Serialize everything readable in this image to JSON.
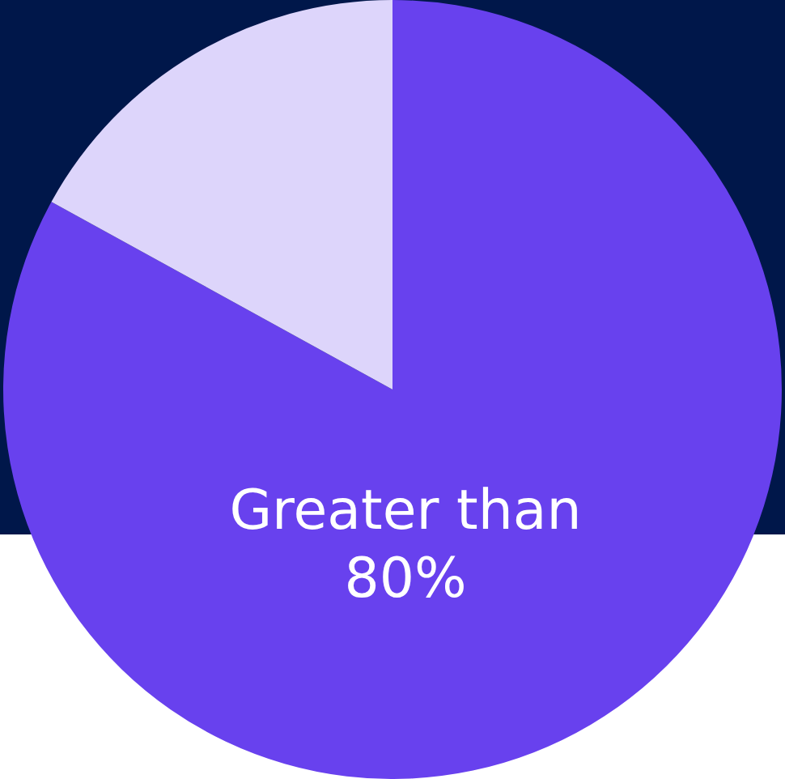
{
  "chart_data": {
    "type": "pie",
    "categories": [
      null,
      null
    ],
    "values": [
      83,
      17
    ],
    "colors": [
      "#6841ee",
      "#ddd5fb"
    ],
    "annotations": [
      "Greater than 80%"
    ]
  }
}
